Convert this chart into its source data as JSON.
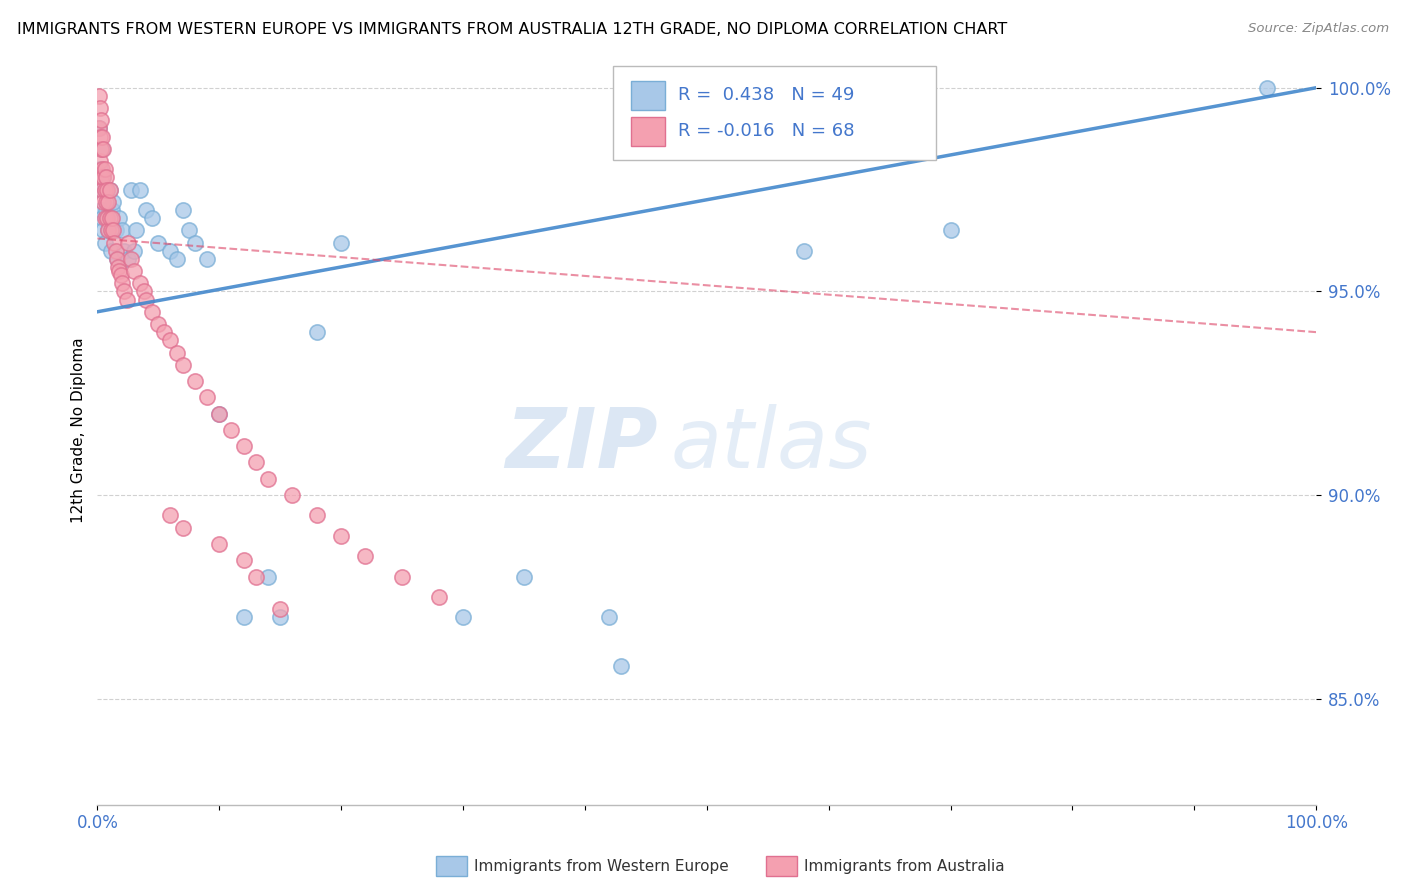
{
  "title": "IMMIGRANTS FROM WESTERN EUROPE VS IMMIGRANTS FROM AUSTRALIA 12TH GRADE, NO DIPLOMA CORRELATION CHART",
  "source": "Source: ZipAtlas.com",
  "ylabel": "12th Grade, No Diploma",
  "x_min": 0.0,
  "x_max": 1.0,
  "y_min": 0.824,
  "y_max": 1.008,
  "ytick_values": [
    0.85,
    0.9,
    0.95,
    1.0
  ],
  "blue_color": "#a8c8e8",
  "blue_edge_color": "#7aaed6",
  "pink_color": "#f4a0b0",
  "pink_edge_color": "#e07090",
  "blue_line_color": "#4488cc",
  "pink_line_color": "#dd4466",
  "legend_R1": "R =  0.438",
  "legend_N1": "N = 49",
  "legend_R2": "R = -0.016",
  "legend_N2": "N = 68",
  "watermark_zip": "ZIP",
  "watermark_atlas": "atlas",
  "background_color": "#ffffff",
  "grid_color": "#cccccc",
  "tick_color": "#4477cc",
  "title_color": "#000000",
  "ylabel_color": "#000000",
  "blue_x": [
    0.001,
    0.002,
    0.003,
    0.003,
    0.004,
    0.004,
    0.005,
    0.005,
    0.006,
    0.006,
    0.007,
    0.008,
    0.009,
    0.01,
    0.011,
    0.012,
    0.013,
    0.015,
    0.016,
    0.018,
    0.02,
    0.022,
    0.025,
    0.028,
    0.03,
    0.032,
    0.035,
    0.04,
    0.045,
    0.05,
    0.06,
    0.065,
    0.07,
    0.075,
    0.08,
    0.09,
    0.1,
    0.12,
    0.14,
    0.15,
    0.18,
    0.2,
    0.3,
    0.35,
    0.42,
    0.43,
    0.58,
    0.7,
    0.96
  ],
  "blue_y": [
    0.99,
    0.98,
    0.975,
    0.97,
    0.985,
    0.968,
    0.978,
    0.965,
    0.975,
    0.962,
    0.97,
    0.968,
    0.965,
    0.975,
    0.96,
    0.97,
    0.972,
    0.965,
    0.958,
    0.968,
    0.965,
    0.96,
    0.958,
    0.975,
    0.96,
    0.965,
    0.975,
    0.97,
    0.968,
    0.962,
    0.96,
    0.958,
    0.97,
    0.965,
    0.962,
    0.958,
    0.92,
    0.87,
    0.88,
    0.87,
    0.94,
    0.962,
    0.87,
    0.88,
    0.87,
    0.858,
    0.96,
    0.965,
    1.0
  ],
  "pink_x": [
    0.001,
    0.001,
    0.002,
    0.002,
    0.002,
    0.003,
    0.003,
    0.003,
    0.004,
    0.004,
    0.004,
    0.005,
    0.005,
    0.005,
    0.006,
    0.006,
    0.006,
    0.007,
    0.007,
    0.008,
    0.008,
    0.009,
    0.009,
    0.01,
    0.01,
    0.011,
    0.012,
    0.013,
    0.014,
    0.015,
    0.016,
    0.017,
    0.018,
    0.019,
    0.02,
    0.022,
    0.024,
    0.025,
    0.028,
    0.03,
    0.035,
    0.038,
    0.04,
    0.045,
    0.05,
    0.055,
    0.06,
    0.065,
    0.07,
    0.08,
    0.09,
    0.1,
    0.11,
    0.12,
    0.13,
    0.14,
    0.16,
    0.18,
    0.2,
    0.22,
    0.25,
    0.28,
    0.13,
    0.15,
    0.06,
    0.07,
    0.1,
    0.12
  ],
  "pink_y": [
    0.998,
    0.99,
    0.995,
    0.988,
    0.982,
    0.992,
    0.985,
    0.978,
    0.988,
    0.98,
    0.975,
    0.985,
    0.978,
    0.972,
    0.98,
    0.975,
    0.968,
    0.978,
    0.972,
    0.975,
    0.968,
    0.972,
    0.965,
    0.975,
    0.968,
    0.965,
    0.968,
    0.965,
    0.962,
    0.96,
    0.958,
    0.956,
    0.955,
    0.954,
    0.952,
    0.95,
    0.948,
    0.962,
    0.958,
    0.955,
    0.952,
    0.95,
    0.948,
    0.945,
    0.942,
    0.94,
    0.938,
    0.935,
    0.932,
    0.928,
    0.924,
    0.92,
    0.916,
    0.912,
    0.908,
    0.904,
    0.9,
    0.895,
    0.89,
    0.885,
    0.88,
    0.875,
    0.88,
    0.872,
    0.895,
    0.892,
    0.888,
    0.884
  ],
  "blue_trend_x": [
    0.0,
    1.0
  ],
  "blue_trend_y": [
    0.945,
    1.0
  ],
  "pink_trend_x": [
    0.0,
    1.0
  ],
  "pink_trend_y": [
    0.963,
    0.94
  ]
}
